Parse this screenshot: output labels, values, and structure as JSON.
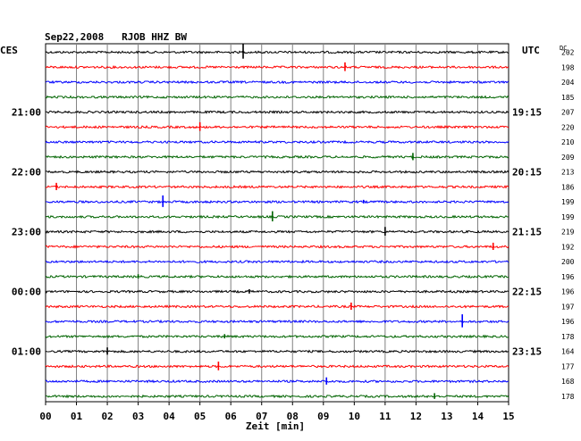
{
  "chart_data": {
    "type": "line",
    "title": "Sep22,2008   RJOB HHZ BW",
    "left_timezone": "CES",
    "right_timezone": "UTC",
    "dc_header": "DC",
    "xlabel": "Zeit [min]",
    "xlim": [
      0,
      15
    ],
    "x_ticks": [
      "00",
      "01",
      "02",
      "03",
      "04",
      "05",
      "06",
      "07",
      "08",
      "09",
      "10",
      "11",
      "12",
      "13",
      "14",
      "15"
    ],
    "left_hour_labels": [
      {
        "trace": 4,
        "text": "21:00"
      },
      {
        "trace": 8,
        "text": "22:00"
      },
      {
        "trace": 12,
        "text": "23:00"
      },
      {
        "trace": 16,
        "text": "00:00"
      },
      {
        "trace": 20,
        "text": "01:00"
      }
    ],
    "right_time_labels": [
      {
        "trace": 4,
        "text": "19:15"
      },
      {
        "trace": 8,
        "text": "20:15"
      },
      {
        "trace": 12,
        "text": "21:15"
      },
      {
        "trace": 16,
        "text": "22:15"
      },
      {
        "trace": 20,
        "text": "23:15"
      }
    ],
    "trace_colors": [
      "#000000",
      "#ff0000",
      "#0000ff",
      "#006400"
    ],
    "dc_values": [
      "202",
      "198",
      "204",
      "185",
      "207",
      "220",
      "210",
      "209",
      "213",
      "186",
      "199",
      "199",
      "219",
      "192",
      "200",
      "196",
      "196",
      "197",
      "196",
      "178",
      "164",
      "177",
      "168",
      "178"
    ],
    "spikes": [
      {
        "trace": 0,
        "minute": 6.4,
        "amplitude": 1.0
      },
      {
        "trace": 1,
        "minute": 9.7,
        "amplitude": 0.6
      },
      {
        "trace": 5,
        "minute": 5.0,
        "amplitude": 0.6
      },
      {
        "trace": 7,
        "minute": 11.9,
        "amplitude": 0.5
      },
      {
        "trace": 9,
        "minute": 0.35,
        "amplitude": 0.5
      },
      {
        "trace": 10,
        "minute": 3.8,
        "amplitude": 0.8
      },
      {
        "trace": 10,
        "minute": 10.3,
        "amplitude": 0.25
      },
      {
        "trace": 11,
        "minute": 7.35,
        "amplitude": 0.7
      },
      {
        "trace": 12,
        "minute": 11.0,
        "amplitude": 0.6
      },
      {
        "trace": 13,
        "minute": 14.5,
        "amplitude": 0.5
      },
      {
        "trace": 15,
        "minute": 3.0,
        "amplitude": 0.3
      },
      {
        "trace": 16,
        "minute": 6.6,
        "amplitude": 0.3
      },
      {
        "trace": 17,
        "minute": 9.9,
        "amplitude": 0.5
      },
      {
        "trace": 18,
        "minute": 13.5,
        "amplitude": 0.9
      },
      {
        "trace": 19,
        "minute": 5.8,
        "amplitude": 0.3
      },
      {
        "trace": 20,
        "minute": 2.0,
        "amplitude": 0.5
      },
      {
        "trace": 21,
        "minute": 5.6,
        "amplitude": 0.6
      },
      {
        "trace": 22,
        "minute": 9.1,
        "amplitude": 0.5
      },
      {
        "trace": 23,
        "minute": 12.6,
        "amplitude": 0.4
      }
    ]
  }
}
